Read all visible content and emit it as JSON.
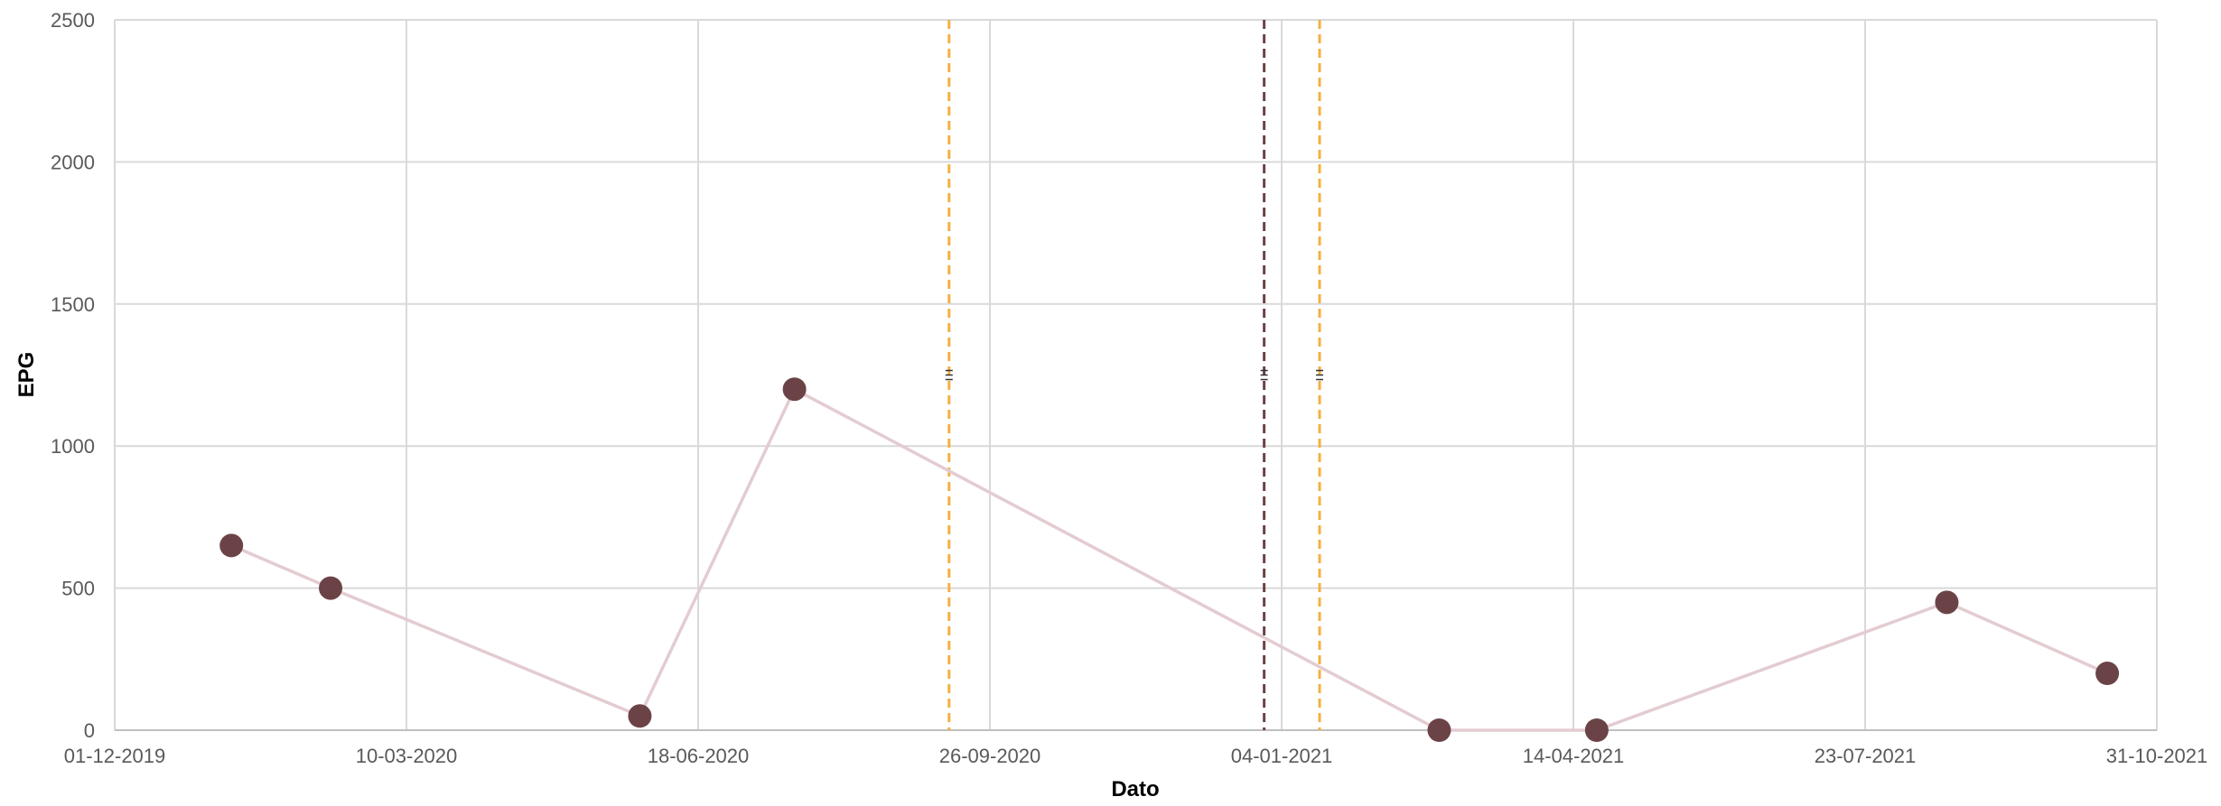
{
  "chart_data": {
    "type": "scatter",
    "xlabel": "Dato",
    "ylabel": "EPG",
    "x_axis": {
      "type": "date",
      "min": "01-12-2019",
      "max": "31-10-2021",
      "ticks": [
        "01-12-2019",
        "10-03-2020",
        "18-06-2020",
        "26-09-2020",
        "04-01-2021",
        "14-04-2021",
        "23-07-2021",
        "31-10-2021"
      ]
    },
    "y_axis": {
      "min": 0,
      "max": 2500,
      "ticks": [
        0,
        500,
        1000,
        1500,
        2000,
        2500
      ]
    },
    "grid": true,
    "series": [
      {
        "points": [
          {
            "x": "10-01-2020",
            "y": 650
          },
          {
            "x": "13-02-2020",
            "y": 500
          },
          {
            "x": "29-05-2020",
            "y": 50
          },
          {
            "x": "21-07-2020",
            "y": 1200
          },
          {
            "x": "27-02-2021",
            "y": 0
          },
          {
            "x": "22-04-2021",
            "y": 0
          },
          {
            "x": "20-08-2021",
            "y": 450
          },
          {
            "x": "14-10-2021",
            "y": 200
          }
        ],
        "marker_color": "#6b4346",
        "line_color": "#e3ccd1"
      }
    ],
    "vertical_lines": [
      {
        "x": "12-09-2020",
        "y_marker": 1250,
        "color": "#f4b040"
      },
      {
        "x": "29-12-2020",
        "y_marker": 1250,
        "color": "#6b4346"
      },
      {
        "x": "17-01-2021",
        "y_marker": 1250,
        "color": "#f4b040"
      }
    ]
  }
}
